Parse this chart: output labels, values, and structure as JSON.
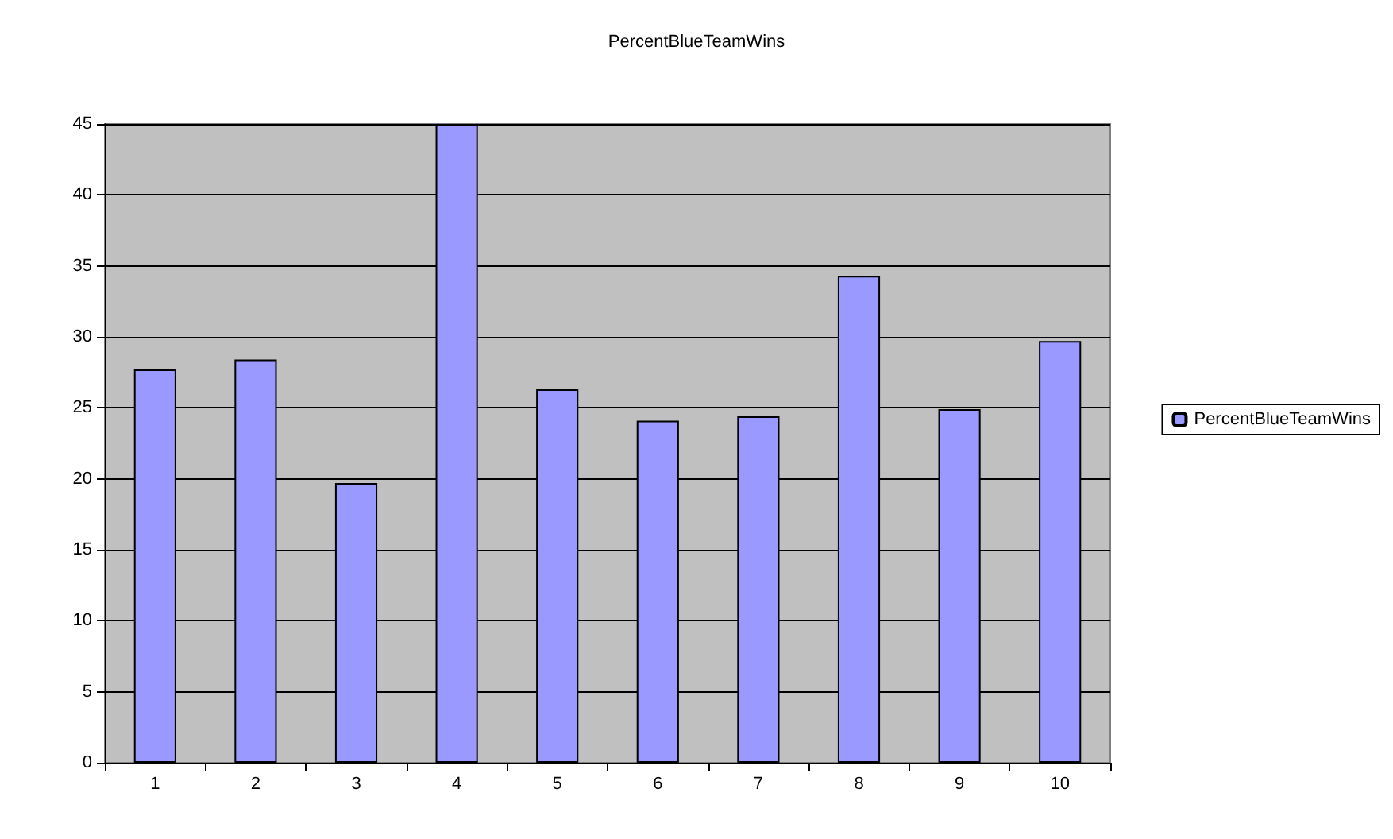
{
  "chart_data": {
    "type": "bar",
    "title": "PercentBlueTeamWins",
    "categories": [
      "1",
      "2",
      "3",
      "4",
      "5",
      "6",
      "7",
      "8",
      "9",
      "10"
    ],
    "series": [
      {
        "name": "PercentBlueTeamWins",
        "color": "#9999ff",
        "values": [
          27.7,
          28.4,
          19.7,
          45.0,
          26.3,
          24.1,
          24.4,
          34.3,
          24.9,
          29.7
        ]
      }
    ],
    "ylim": [
      0,
      45
    ],
    "yticks": [
      0,
      5,
      10,
      15,
      20,
      25,
      30,
      35,
      40,
      45
    ],
    "grid": "y",
    "legend": "right"
  }
}
